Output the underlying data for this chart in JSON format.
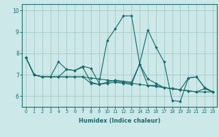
{
  "xlabel": "Humidex (Indice chaleur)",
  "background_color": "#cce8e8",
  "grid_color": "#aacccc",
  "line_color": "#1a6b6b",
  "xlim": [
    -0.5,
    23.5
  ],
  "ylim": [
    5.5,
    10.3
  ],
  "yticks": [
    6,
    7,
    8,
    9,
    10
  ],
  "xticks": [
    0,
    1,
    2,
    3,
    4,
    5,
    6,
    7,
    8,
    9,
    10,
    11,
    12,
    13,
    14,
    15,
    16,
    17,
    18,
    19,
    20,
    21,
    22,
    23
  ],
  "lines": [
    {
      "x": [
        0,
        1,
        2,
        3,
        4,
        5,
        6,
        7,
        8,
        9,
        10,
        11,
        12,
        13,
        14,
        15,
        16,
        17,
        18,
        19,
        20,
        21,
        22,
        23
      ],
      "y": [
        7.8,
        7.0,
        6.9,
        6.9,
        7.6,
        7.25,
        7.2,
        7.4,
        7.3,
        6.6,
        8.6,
        9.15,
        9.75,
        9.75,
        7.5,
        9.1,
        8.3,
        7.6,
        5.8,
        5.75,
        6.85,
        6.9,
        6.4,
        6.2
      ]
    },
    {
      "x": [
        0,
        1,
        2,
        3,
        4,
        5,
        6,
        7,
        8,
        9,
        10,
        11,
        12,
        13,
        14,
        15,
        16,
        17,
        18,
        19,
        20,
        21,
        22,
        23
      ],
      "y": [
        7.8,
        7.0,
        6.9,
        6.9,
        6.9,
        6.9,
        6.9,
        6.9,
        6.85,
        6.8,
        6.75,
        6.7,
        6.65,
        6.6,
        6.55,
        6.5,
        6.45,
        6.4,
        6.35,
        6.3,
        6.25,
        6.2,
        6.2,
        6.2
      ]
    },
    {
      "x": [
        0,
        1,
        2,
        3,
        4,
        5,
        6,
        7,
        8,
        9,
        10,
        11,
        12,
        13,
        14,
        15,
        16,
        17,
        18,
        19,
        20,
        21,
        22,
        23
      ],
      "y": [
        7.8,
        7.0,
        6.9,
        6.9,
        6.9,
        7.25,
        7.2,
        7.35,
        6.65,
        6.55,
        6.65,
        6.75,
        6.7,
        6.65,
        7.5,
        6.8,
        6.6,
        6.4,
        6.35,
        6.3,
        6.85,
        6.9,
        6.4,
        6.2
      ]
    },
    {
      "x": [
        0,
        1,
        2,
        3,
        4,
        5,
        6,
        7,
        8,
        9,
        10,
        11,
        12,
        13,
        14,
        15,
        16,
        17,
        18,
        19,
        20,
        21,
        22,
        23
      ],
      "y": [
        7.8,
        7.0,
        6.9,
        6.9,
        6.9,
        6.9,
        6.9,
        6.9,
        6.6,
        6.55,
        6.6,
        6.65,
        6.6,
        6.55,
        7.5,
        6.5,
        6.5,
        6.4,
        6.35,
        6.3,
        6.25,
        6.2,
        6.35,
        6.2
      ]
    }
  ]
}
